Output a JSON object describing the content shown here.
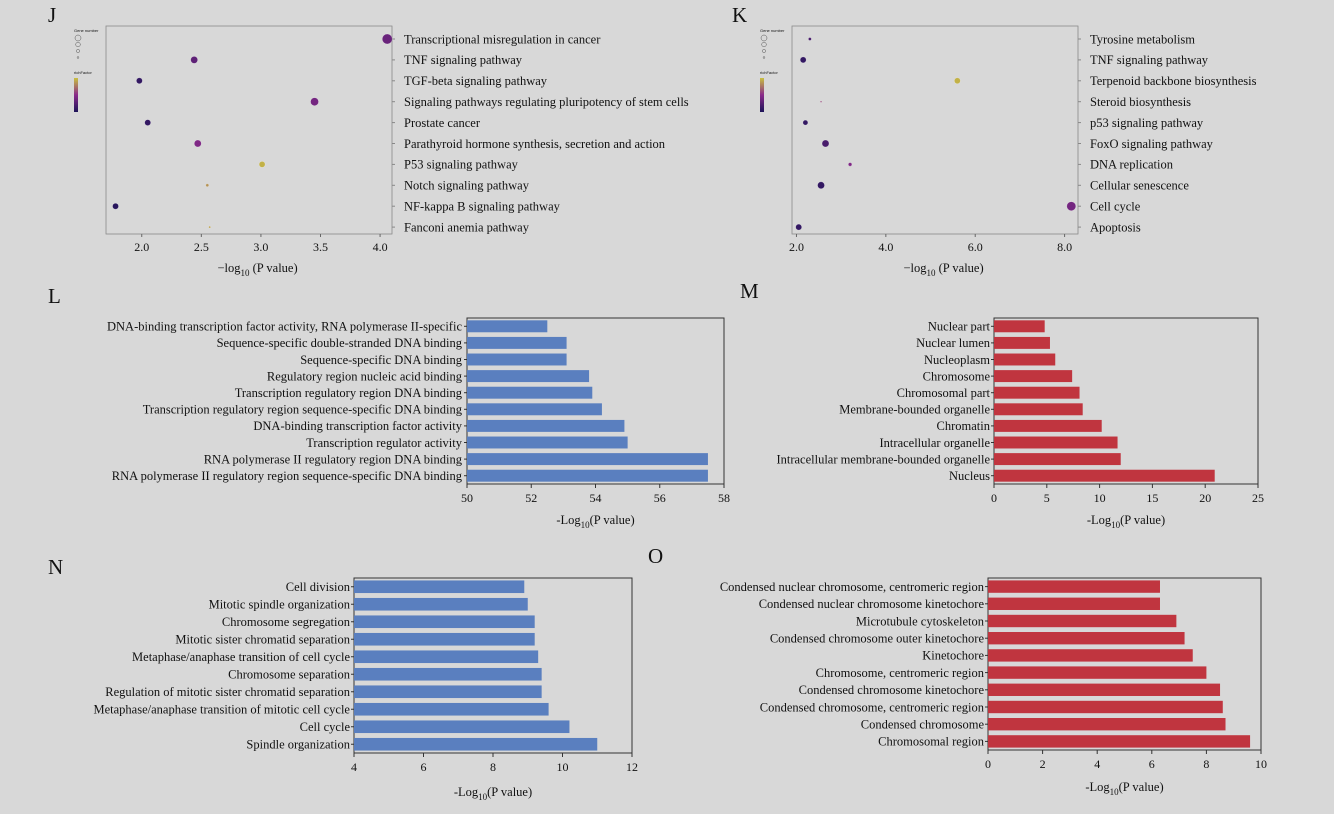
{
  "colors": {
    "blue_bar": "#5a7fbf",
    "red_bar": "#c0353f",
    "bubble_low": "#1d1458",
    "bubble_mid": "#8a2a8a",
    "bubble_high": "#c8c040"
  },
  "chart_data": [
    {
      "id": "J",
      "type": "scatter",
      "panel_label": "J",
      "xlabel_main": "−log",
      "xlabel_sub": "10",
      "xlabel_tail": " (P value)",
      "xlim": [
        1.7,
        4.1
      ],
      "xticks": [
        2.0,
        2.5,
        3.0,
        3.5,
        4.0
      ],
      "tick_format": 1,
      "legend_title_size": "Gene number",
      "legend_title_color": "richFactor",
      "categories": [
        "Transcriptional misregulation in cancer",
        "TNF signaling pathway",
        "TGF-beta signaling pathway",
        "Signaling pathways regulating pluripotency of stem cells",
        "Prostate cancer",
        "Parathyroid hormone synthesis, secretion and action",
        "P53 signaling pathway",
        "Notch signaling pathway",
        "NF-kappa B signaling pathway",
        "Fanconi anemia pathway"
      ],
      "x": [
        4.06,
        2.44,
        1.98,
        3.45,
        2.05,
        2.47,
        3.01,
        2.55,
        1.78,
        2.57
      ],
      "size": [
        5,
        3.5,
        3,
        4,
        3,
        3.5,
        3,
        1.5,
        3,
        1
      ],
      "color": [
        0.35,
        0.3,
        0.1,
        0.4,
        0.1,
        0.45,
        0.95,
        0.85,
        0.05,
        0.9
      ]
    },
    {
      "id": "K",
      "type": "scatter",
      "panel_label": "K",
      "xlabel_main": "−log",
      "xlabel_sub": "10",
      "xlabel_tail": " (P value)",
      "xlim": [
        1.9,
        8.3
      ],
      "xticks": [
        2.0,
        4.0,
        6.0,
        8.0
      ],
      "tick_format": 1,
      "legend_title_size": "Gene number",
      "legend_title_color": "richFactor",
      "categories": [
        "Tyrosine metabolism",
        "TNF signaling pathway",
        "Terpenoid backbone biosynthesis",
        "Steroid biosynthesis",
        "p53 signaling pathway",
        "FoxO signaling pathway",
        "DNA replication",
        "Cellular senescence",
        "Cell cycle",
        "Apoptosis"
      ],
      "x": [
        2.3,
        2.15,
        5.6,
        2.55,
        2.2,
        2.65,
        3.2,
        2.55,
        8.15,
        2.05
      ],
      "size": [
        1.5,
        3,
        3,
        0.8,
        2.5,
        3.5,
        1.8,
        3.5,
        4.5,
        3
      ],
      "color": [
        0.2,
        0.1,
        0.95,
        0.6,
        0.1,
        0.2,
        0.45,
        0.1,
        0.4,
        0.1
      ]
    },
    {
      "id": "L",
      "type": "bar",
      "orientation": "horizontal",
      "panel_label": "L",
      "xlabel_main": "-Log",
      "xlabel_sub": "10",
      "xlabel_tail": "(P value)",
      "xlim": [
        50,
        58
      ],
      "xticks": [
        50,
        52,
        54,
        56,
        58
      ],
      "tick_format": 0,
      "bar_color": "blue",
      "categories": [
        "DNA-binding transcription factor activity, RNA polymerase II-specific",
        "Sequence-specific double-stranded DNA binding",
        "Sequence-specific DNA binding",
        "Regulatory region nucleic acid binding",
        "Transcription regulatory region DNA binding",
        "Transcription regulatory region sequence-specific DNA binding",
        "DNA-binding transcription factor activity",
        "Transcription regulator activity",
        "RNA polymerase II regulatory region DNA binding",
        "RNA polymerase II regulatory region sequence-specific DNA binding"
      ],
      "values": [
        52.5,
        53.1,
        53.1,
        53.8,
        53.9,
        54.2,
        54.9,
        55.0,
        57.5,
        57.5
      ]
    },
    {
      "id": "M",
      "type": "bar",
      "orientation": "horizontal",
      "panel_label": "M",
      "xlabel_main": "-Log",
      "xlabel_sub": "10",
      "xlabel_tail": "(P value)",
      "xlim": [
        0,
        25
      ],
      "xticks": [
        0,
        5,
        10,
        15,
        20,
        25
      ],
      "tick_format": 0,
      "bar_color": "red",
      "categories": [
        "Nuclear part",
        "Nuclear lumen",
        "Nucleoplasm",
        "Chromosome",
        "Chromosomal part",
        "Membrane-bounded organelle",
        "Chromatin",
        "Intracellular organelle",
        "Intracellular membrane-bounded organelle",
        "Nucleus"
      ],
      "values": [
        4.8,
        5.3,
        5.8,
        7.4,
        8.1,
        8.4,
        10.2,
        11.7,
        12.0,
        20.9
      ]
    },
    {
      "id": "N",
      "type": "bar",
      "orientation": "horizontal",
      "panel_label": "N",
      "xlabel_main": "-Log",
      "xlabel_sub": "10",
      "xlabel_tail": "(P value)",
      "xlim": [
        4,
        12
      ],
      "xticks": [
        4,
        6,
        8,
        10,
        12
      ],
      "tick_format": 0,
      "bar_color": "blue",
      "categories": [
        "Cell division",
        "Mitotic spindle organization",
        "Chromosome segregation",
        "Mitotic sister chromatid separation",
        "Metaphase/anaphase transition of cell cycle",
        "Chromosome separation",
        "Regulation of mitotic sister chromatid separation",
        "Metaphase/anaphase transition of mitotic cell cycle",
        "Cell cycle",
        "Spindle organization"
      ],
      "values": [
        8.9,
        9.0,
        9.2,
        9.2,
        9.3,
        9.4,
        9.4,
        9.6,
        10.2,
        11.0
      ]
    },
    {
      "id": "O",
      "type": "bar",
      "orientation": "horizontal",
      "panel_label": "O",
      "xlabel_main": "-Log",
      "xlabel_sub": "10",
      "xlabel_tail": "(P value)",
      "xlim": [
        0,
        10
      ],
      "xticks": [
        0,
        2,
        4,
        6,
        8,
        10
      ],
      "tick_format": 0,
      "bar_color": "red",
      "categories": [
        "Condensed nuclear chromosome, centromeric region",
        "Condensed nuclear chromosome kinetochore",
        "Microtubule cytoskeleton",
        "Condensed chromosome outer kinetochore",
        "Kinetochore",
        "Chromosome, centromeric region",
        "Condensed chromosome kinetochore",
        "Condensed chromosome, centromeric region",
        "Condensed chromosome",
        "Chromosomal region"
      ],
      "values": [
        6.3,
        6.3,
        6.9,
        7.2,
        7.5,
        8.0,
        8.5,
        8.6,
        8.7,
        9.6
      ]
    }
  ]
}
